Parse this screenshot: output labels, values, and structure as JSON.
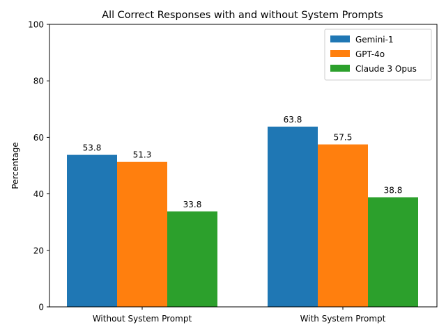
{
  "chart_data": {
    "type": "bar",
    "title": "All Correct Responses with and without System Prompts",
    "xlabel": "",
    "ylabel": "Percentage",
    "categories": [
      "Without System Prompt",
      "With System Prompt"
    ],
    "series": [
      {
        "name": "Gemini-1",
        "color": "#1f77b4",
        "values": [
          53.8,
          63.8
        ]
      },
      {
        "name": "GPT-4o",
        "color": "#ff7f0e",
        "values": [
          51.3,
          57.5
        ]
      },
      {
        "name": "Claude 3 Opus",
        "color": "#2ca02c",
        "values": [
          33.8,
          38.8
        ]
      }
    ],
    "ylim": [
      0,
      100
    ],
    "yticks": [
      0,
      20,
      40,
      60,
      80,
      100
    ],
    "grid": false,
    "legend_position": "top-right"
  }
}
